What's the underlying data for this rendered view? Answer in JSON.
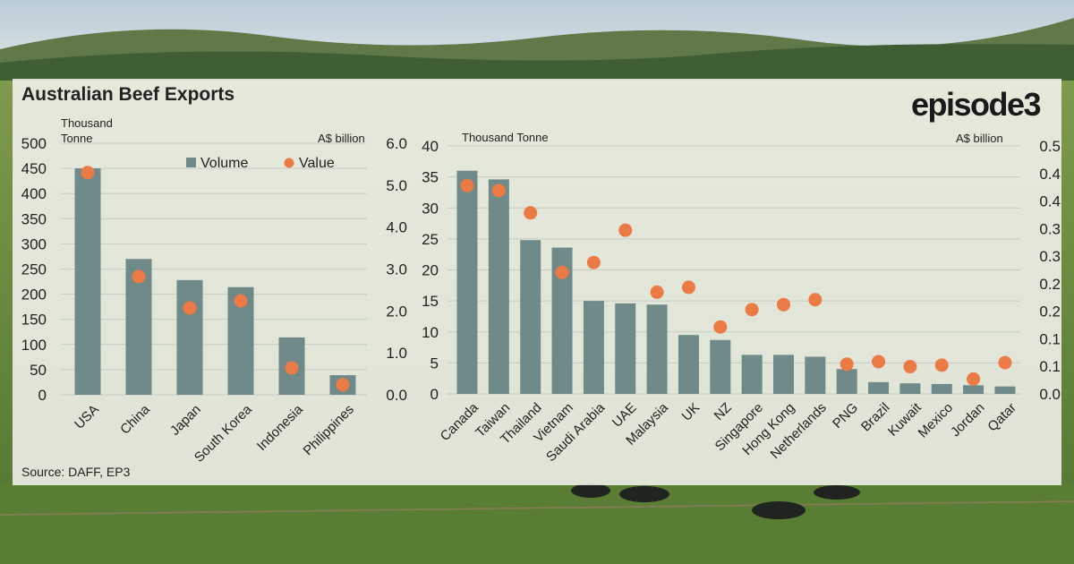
{
  "title": "Australian Beef Exports",
  "logo": "episode3",
  "source": "Source: DAFF, EP3",
  "colors": {
    "bar": "#6f8a88",
    "dot": "#ec7a44",
    "grid": "#c9cbc6"
  },
  "chart_data": [
    {
      "type": "bar",
      "left_axis_label": "Thousand Tonne",
      "right_axis_label": "A$ billion",
      "categories": [
        "USA",
        "China",
        "Japan",
        "South Korea",
        "Indonesia",
        "Philippines"
      ],
      "series": [
        {
          "name": "Volume",
          "axis": "left",
          "values": [
            450,
            270,
            228,
            214,
            114,
            39
          ]
        },
        {
          "name": "Value",
          "axis": "right",
          "mark": "dot",
          "values": [
            5.3,
            2.82,
            2.07,
            2.24,
            0.64,
            0.24
          ]
        }
      ],
      "left_ylim": [
        0,
        500
      ],
      "left_ticks": [
        "0",
        "50",
        "100",
        "150",
        "200",
        "250",
        "300",
        "350",
        "400",
        "450",
        "500"
      ],
      "right_ylim": [
        0,
        6
      ],
      "right_ticks": [
        "0.0",
        "1.0",
        "2.0",
        "3.0",
        "4.0",
        "5.0",
        "6.0"
      ],
      "legend": "top-center",
      "grid": true
    },
    {
      "type": "bar",
      "left_axis_label": "Thousand Tonne",
      "right_axis_label": "A$ billion",
      "categories": [
        "Canada",
        "Taiwan",
        "Thailand",
        "Vietnam",
        "Saudi Arabia",
        "UAE",
        "Malaysia",
        "UK",
        "NZ",
        "Singapore",
        "Hong Kong",
        "Netherlands",
        "PNG",
        "Brazil",
        "Kuwait",
        "Mexico",
        "Jordan",
        "Qatar"
      ],
      "series": [
        {
          "name": "Volume",
          "axis": "left",
          "values": [
            36,
            34.6,
            24.8,
            23.6,
            15,
            14.6,
            14.4,
            9.5,
            8.7,
            6.3,
            6.3,
            6.0,
            4.0,
            1.9,
            1.7,
            1.6,
            1.4,
            1.2
          ]
        },
        {
          "name": "Value",
          "axis": "right",
          "mark": "dot",
          "values": [
            0.42,
            0.41,
            0.365,
            0.245,
            0.265,
            0.33,
            0.205,
            0.215,
            0.135,
            0.17,
            0.18,
            0.19,
            0.06,
            0.065,
            0.055,
            0.058,
            0.03,
            0.063
          ]
        }
      ],
      "left_ylim": [
        0,
        40
      ],
      "left_ticks": [
        "0",
        "5",
        "10",
        "15",
        "20",
        "25",
        "30",
        "35",
        "40"
      ],
      "right_ylim": [
        0,
        0.5
      ],
      "right_ticks": [
        "0.0",
        "0.1",
        "0.1",
        "0.2",
        "0.2",
        "0.3",
        "0.3",
        "0.4",
        "0.4",
        "0.5"
      ],
      "grid": true
    }
  ]
}
